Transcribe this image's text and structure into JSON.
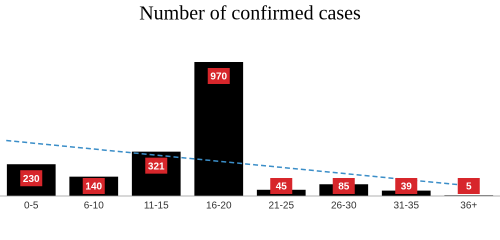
{
  "chart_data": {
    "type": "bar",
    "title": "Number of confirmed cases",
    "categories": [
      "0-5",
      "6-10",
      "11-15",
      "16-20",
      "21-25",
      "26-30",
      "31-35",
      "36+"
    ],
    "values": [
      230,
      140,
      321,
      970,
      45,
      85,
      39,
      5
    ],
    "color": "#000000",
    "label_color": "#d7262b",
    "trendline_color": "#3b8ec8",
    "trendline": true,
    "grid": false
  }
}
